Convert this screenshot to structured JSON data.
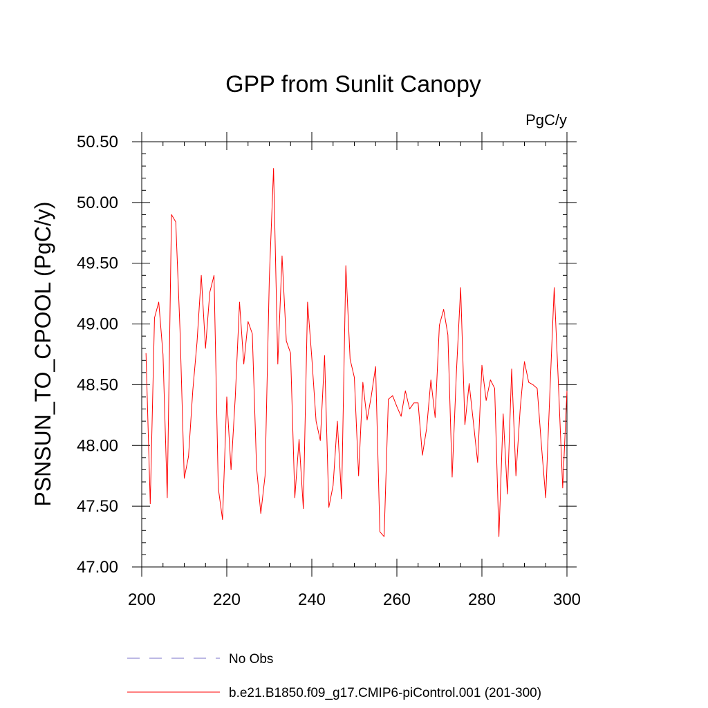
{
  "chart_data": {
    "type": "line",
    "title": "GPP from Sunlit Canopy",
    "units_label": "PgC/y",
    "ylabel": "PSNSUN_TO_CPOOL  (PgC/y)",
    "xlabel": "",
    "xlim": [
      200,
      300
    ],
    "ylim": [
      47.0,
      50.5
    ],
    "x_ticks": [
      200,
      220,
      240,
      260,
      280,
      300
    ],
    "x_tick_labels": [
      "200",
      "220",
      "240",
      "260",
      "280",
      "300"
    ],
    "y_ticks": [
      47.0,
      47.5,
      48.0,
      48.5,
      49.0,
      49.5,
      50.0,
      50.5
    ],
    "y_tick_labels": [
      "47.00",
      "47.50",
      "48.00",
      "48.50",
      "49.00",
      "49.50",
      "50.00",
      "50.50"
    ],
    "x_minor_step": 5,
    "y_minor_step": 0.1,
    "series": [
      {
        "name": "b.e21.B1850.f09_g17.CMIP6-piControl.001 (201-300)",
        "color": "#ff0000",
        "style": "solid",
        "x": [
          201,
          202,
          203,
          204,
          205,
          206,
          207,
          208,
          209,
          210,
          211,
          212,
          213,
          214,
          215,
          216,
          217,
          218,
          219,
          220,
          221,
          222,
          223,
          224,
          225,
          226,
          227,
          228,
          229,
          230,
          231,
          232,
          233,
          234,
          235,
          236,
          237,
          238,
          239,
          240,
          241,
          242,
          243,
          244,
          245,
          246,
          247,
          248,
          249,
          250,
          251,
          252,
          253,
          254,
          255,
          256,
          257,
          258,
          259,
          260,
          261,
          262,
          263,
          264,
          265,
          266,
          267,
          268,
          269,
          270,
          271,
          272,
          273,
          274,
          275,
          276,
          277,
          278,
          279,
          280,
          281,
          282,
          283,
          284,
          285,
          286,
          287,
          288,
          289,
          290,
          291,
          292,
          293,
          294,
          295,
          296,
          297,
          298,
          299,
          300
        ],
        "values": [
          48.76,
          47.52,
          49.05,
          49.18,
          48.75,
          47.57,
          49.9,
          49.84,
          48.95,
          47.73,
          47.91,
          48.45,
          48.85,
          49.4,
          48.8,
          49.26,
          49.4,
          47.65,
          47.39,
          48.4,
          47.8,
          48.4,
          49.18,
          48.67,
          49.02,
          48.92,
          47.82,
          47.44,
          47.75,
          49.37,
          50.28,
          48.67,
          49.56,
          48.86,
          48.76,
          47.57,
          48.05,
          47.48,
          49.18,
          48.72,
          48.2,
          48.04,
          48.74,
          47.49,
          47.67,
          48.2,
          47.56,
          49.48,
          48.71,
          48.56,
          47.75,
          48.52,
          48.21,
          48.41,
          48.65,
          47.29,
          47.25,
          48.38,
          48.41,
          48.32,
          48.24,
          48.45,
          48.3,
          48.35,
          48.35,
          47.92,
          48.14,
          48.54,
          48.23,
          48.99,
          49.12,
          48.91,
          47.74,
          48.6,
          49.3,
          48.17,
          48.51,
          48.19,
          47.86,
          48.66,
          48.37,
          48.54,
          48.47,
          47.25,
          48.26,
          47.6,
          48.63,
          47.75,
          48.3,
          48.69,
          48.52,
          48.5,
          48.47,
          48.0,
          47.57,
          48.45,
          49.3,
          48.5,
          47.65,
          48.45
        ]
      }
    ],
    "legend": {
      "position": "bottom",
      "entries": [
        {
          "label": "No Obs",
          "color": "#7a70c8",
          "style": "dashed"
        },
        {
          "label": "b.e21.B1850.f09_g17.CMIP6-piControl.001 (201-300)",
          "color": "#ff0000",
          "style": "solid"
        }
      ]
    }
  }
}
